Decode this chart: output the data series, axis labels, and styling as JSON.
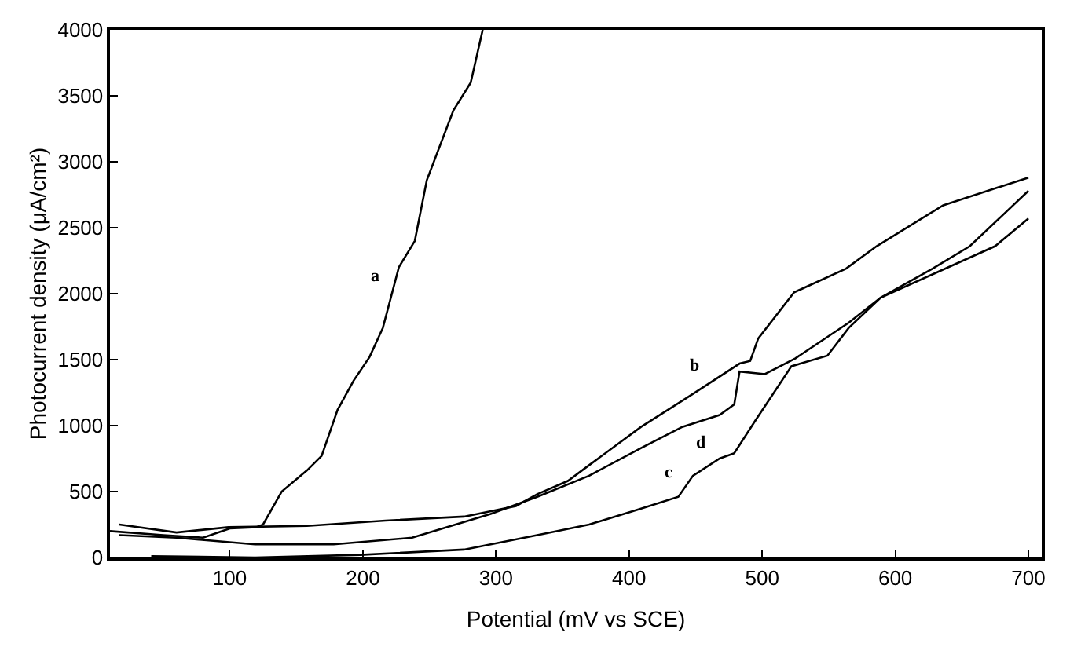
{
  "chart_data": {
    "type": "line",
    "xlabel": "Potential (mV vs SCE)",
    "ylabel": "Photocurrent density (μA/cm²)",
    "xlim": [
      10,
      710
    ],
    "xticks": [
      100,
      200,
      300,
      400,
      500,
      600,
      700
    ],
    "ylim": [
      0,
      4000
    ],
    "yticks": [
      0,
      500,
      1000,
      1500,
      2000,
      2500,
      3000,
      3500,
      4000
    ],
    "grid": false,
    "legend": false,
    "marker": "none",
    "line_style": "solid",
    "series": [
      {
        "name": "a",
        "color": "#000000",
        "x": [
          10,
          50,
          80,
          100,
          120,
          125,
          139,
          158,
          169,
          181,
          193,
          205,
          215,
          227,
          239,
          248,
          268,
          281,
          290
        ],
        "values": [
          200,
          170,
          150,
          220,
          230,
          250,
          500,
          660,
          770,
          1120,
          1340,
          1520,
          1740,
          2200,
          2400,
          2860,
          3390,
          3600,
          4000
        ]
      },
      {
        "name": "b",
        "color": "#000000",
        "x": [
          17,
          60,
          99,
          158,
          217,
          276,
          315,
          331,
          354,
          370,
          409,
          448,
          483,
          491,
          497,
          524,
          563,
          586,
          636,
          700
        ],
        "values": [
          250,
          190,
          230,
          240,
          280,
          310,
          390,
          480,
          580,
          700,
          990,
          1240,
          1470,
          1490,
          1660,
          2010,
          2190,
          2360,
          2670,
          2880
        ]
      },
      {
        "name": "c",
        "color": "#000000",
        "x": [
          41,
          119,
          198,
          276,
          331,
          370,
          409,
          437,
          448,
          468,
          479,
          495,
          522,
          549,
          565,
          589,
          675,
          700
        ],
        "values": [
          10,
          0,
          20,
          60,
          170,
          250,
          370,
          460,
          620,
          750,
          790,
          1040,
          1450,
          1530,
          1740,
          1970,
          2360,
          2570
        ]
      },
      {
        "name": "d",
        "color": "#000000",
        "x": [
          17,
          60,
          119,
          178,
          237,
          296,
          331,
          370,
          409,
          440,
          468,
          479,
          483,
          502,
          525,
          565,
          589,
          628,
          656,
          700
        ],
        "values": [
          170,
          150,
          100,
          100,
          150,
          330,
          460,
          620,
          830,
          990,
          1080,
          1160,
          1410,
          1390,
          1510,
          1780,
          1970,
          2190,
          2360,
          2780
        ]
      }
    ]
  }
}
